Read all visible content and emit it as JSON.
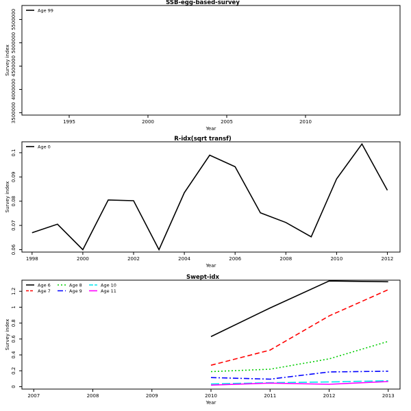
{
  "chart_data": [
    {
      "type": "line",
      "title": "SSB-egg-based-survey",
      "xlabel": "Year",
      "ylabel": "Survey index",
      "xlim": [
        1992,
        2016
      ],
      "ylim": [
        3450000,
        5800000
      ],
      "xticks": [
        1995,
        2000,
        2005,
        2010
      ],
      "yticks": [
        3500000,
        4000000,
        4500000,
        5000000,
        5500000
      ],
      "legend_position": "top-left",
      "series": [
        {
          "name": "Age 99",
          "color": "#000000",
          "dash": "",
          "x": [],
          "y": []
        }
      ]
    },
    {
      "type": "line",
      "title": "R-idx(sqrt transf)",
      "xlabel": "Year",
      "ylabel": "Survey index",
      "xlim": [
        1997.6,
        2012.5
      ],
      "ylim": [
        0.059,
        0.1045
      ],
      "xticks": [
        1998,
        2000,
        2002,
        2004,
        2006,
        2008,
        2010,
        2012
      ],
      "yticks": [
        0.06,
        0.07,
        0.08,
        0.09,
        0.1
      ],
      "legend_position": "top-left",
      "series": [
        {
          "name": "Age 0",
          "color": "#000000",
          "dash": "",
          "x": [
            1998,
            1999,
            2000,
            2001,
            2002,
            2003,
            2004,
            2005,
            2006,
            2007,
            2008,
            2009,
            2010,
            2011,
            2012
          ],
          "y": [
            0.067,
            0.0705,
            0.06,
            0.0805,
            0.0802,
            0.06,
            0.0835,
            0.099,
            0.0942,
            0.0752,
            0.0712,
            0.0653,
            0.0892,
            0.1036,
            0.0845
          ]
        }
      ]
    },
    {
      "type": "line",
      "title": "Swept-idx",
      "xlabel": "Year",
      "ylabel": "Survey index",
      "xlim": [
        2006.8,
        2013.2
      ],
      "ylim": [
        -0.03,
        1.34
      ],
      "xticks": [
        2007,
        2008,
        2009,
        2010,
        2011,
        2012,
        2013
      ],
      "yticks": [
        0.0,
        0.2,
        0.4,
        0.6,
        0.8,
        1.0,
        1.2
      ],
      "legend_position": "top-left",
      "series": [
        {
          "name": "Age 6",
          "color": "#000000",
          "dash": "",
          "x": [
            2010,
            2011,
            2012,
            2013
          ],
          "y": [
            0.63,
            0.99,
            1.33,
            1.32
          ]
        },
        {
          "name": "Age 7",
          "color": "#ff0000",
          "dash": "7,4",
          "x": [
            2010,
            2011,
            2012,
            2013
          ],
          "y": [
            0.27,
            0.46,
            0.89,
            1.22
          ]
        },
        {
          "name": "Age 8",
          "color": "#00cd00",
          "dash": "2,3",
          "x": [
            2010,
            2011,
            2012,
            2013
          ],
          "y": [
            0.19,
            0.22,
            0.35,
            0.57
          ]
        },
        {
          "name": "Age 9",
          "color": "#0000ff",
          "dash": "8,3,2,3",
          "x": [
            2010,
            2011,
            2012,
            2013
          ],
          "y": [
            0.115,
            0.095,
            0.185,
            0.195
          ]
        },
        {
          "name": "Age 10",
          "color": "#00e5ee",
          "dash": "12,4",
          "x": [
            2010,
            2011,
            2012,
            2013
          ],
          "y": [
            0.035,
            0.05,
            0.06,
            0.075
          ]
        },
        {
          "name": "Age 11",
          "color": "#ff00ff",
          "dash": "",
          "x": [
            2010,
            2011,
            2012,
            2013
          ],
          "y": [
            0.02,
            0.045,
            0.03,
            0.065
          ]
        }
      ]
    }
  ]
}
